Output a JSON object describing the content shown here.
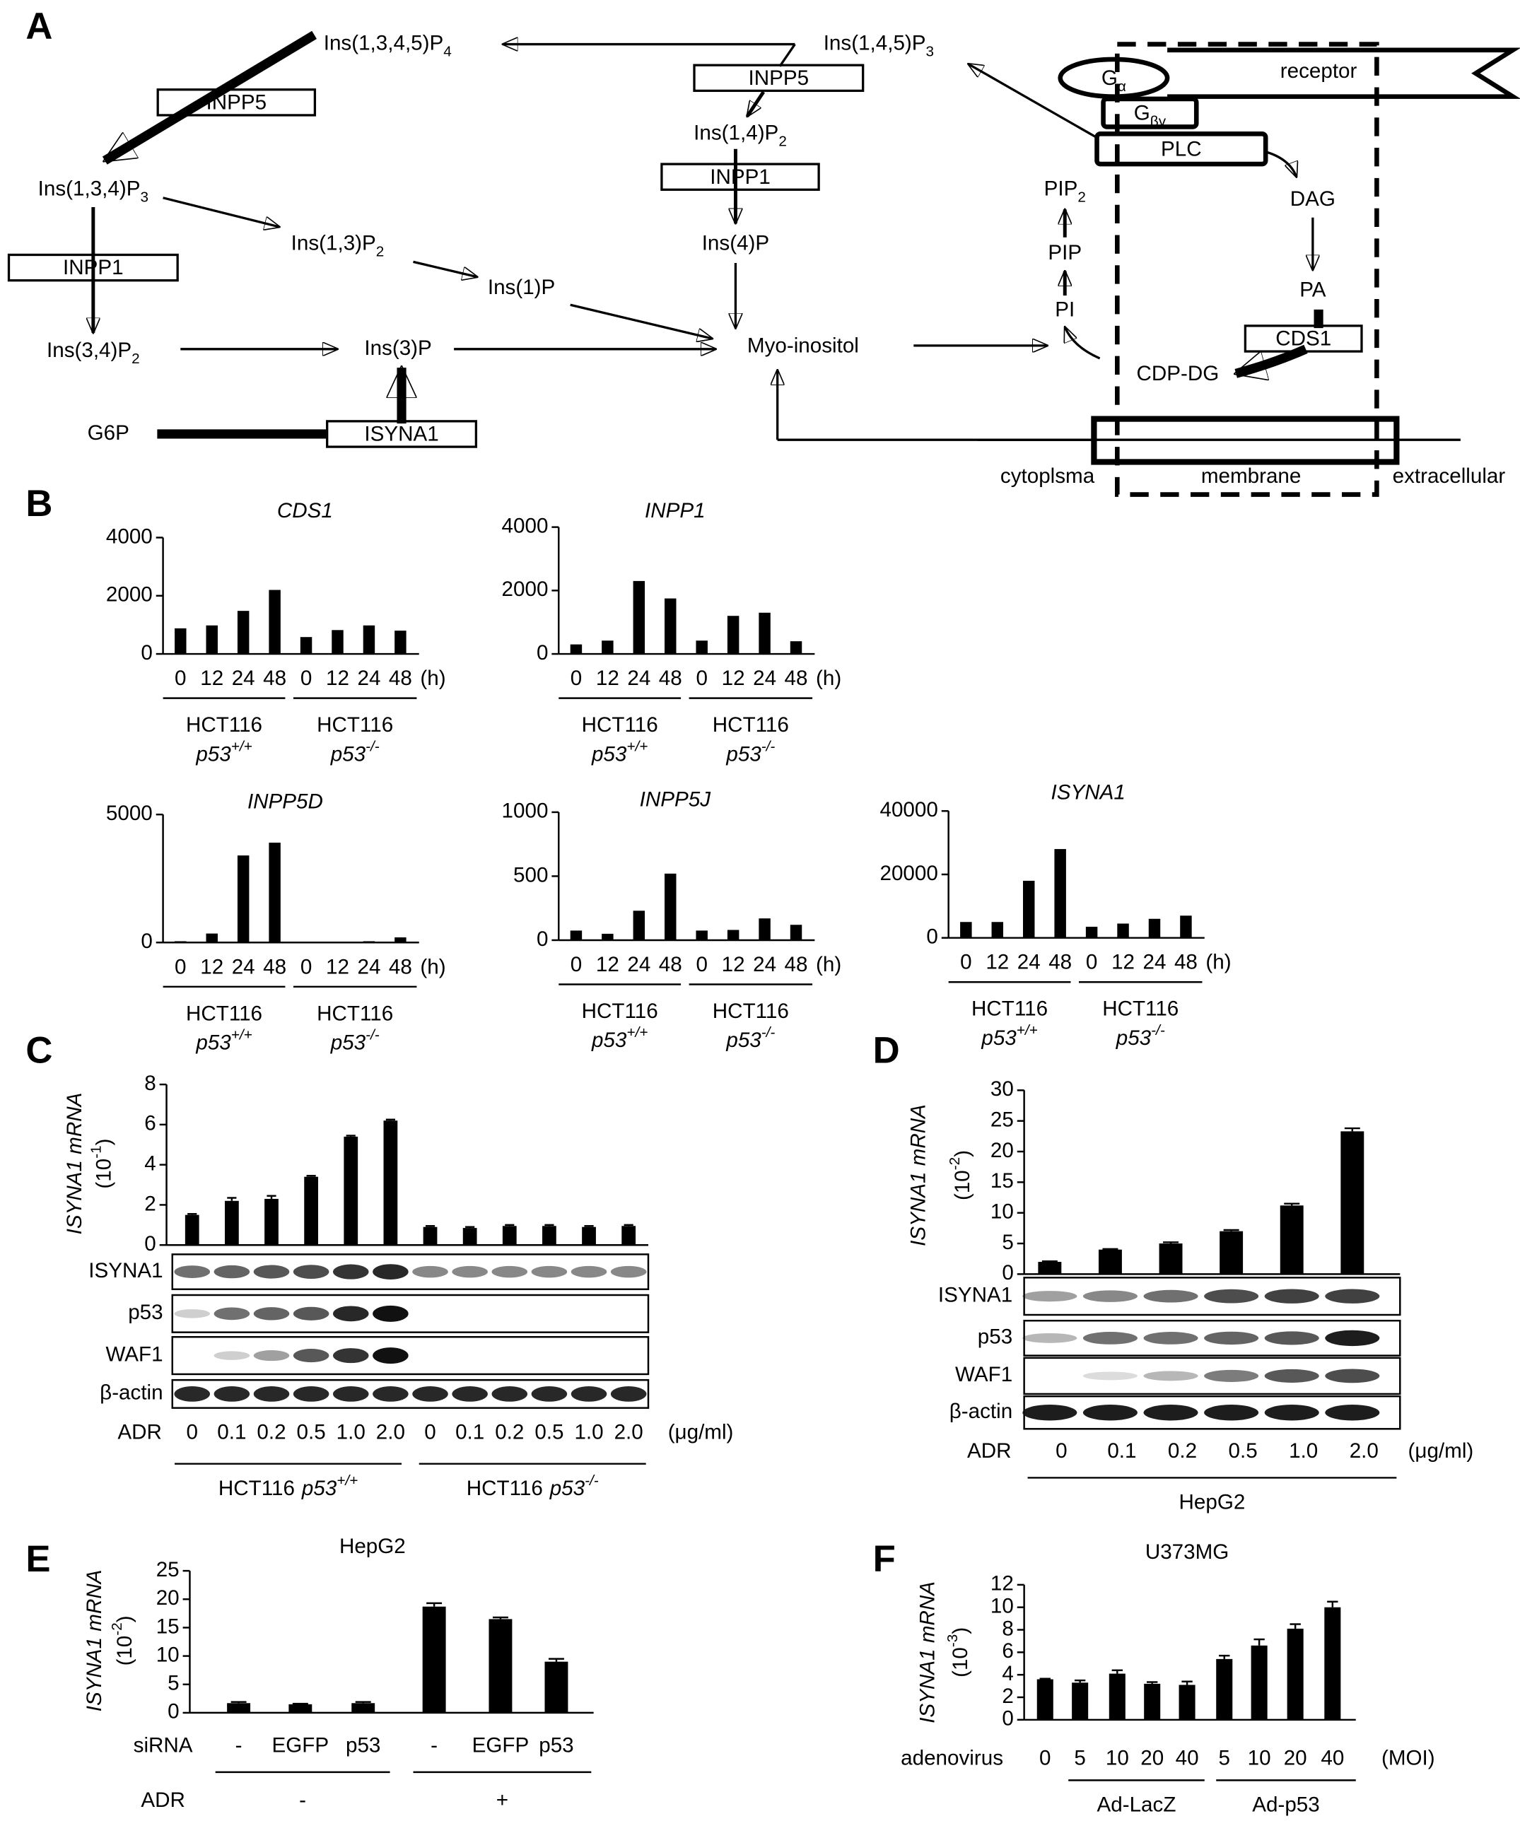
{
  "panel_labels": [
    "A",
    "B",
    "C",
    "D",
    "E",
    "F"
  ],
  "diagram": {
    "nodes": [
      {
        "text": "Ins(1,3,4,5)P",
        "sub": "4"
      },
      {
        "text": "Ins(1,3,4)P",
        "sub": "3"
      },
      {
        "text": "Ins(3,4)P",
        "sub": "2"
      },
      {
        "text": "Ins(1,3)P",
        "sub": "2"
      },
      {
        "text": "Ins(1)P"
      },
      {
        "text": "Ins(3)P"
      },
      {
        "text": "G6P"
      },
      {
        "text": "Ins(1,4)P",
        "sub": "2"
      },
      {
        "text": "Ins(4)P"
      },
      {
        "text": "Myo-inositol"
      },
      {
        "text": "Ins(1,4,5)P",
        "sub": "3"
      },
      {
        "text": "PIP",
        "sub": "2"
      },
      {
        "text": "PIP"
      },
      {
        "text": "PI"
      },
      {
        "text": "DAG"
      },
      {
        "text": "PA"
      },
      {
        "text": "CDP-DG"
      },
      {
        "text": "receptor"
      },
      {
        "text": "cytoplsma"
      },
      {
        "text": "membrane"
      },
      {
        "text": "extracellular"
      }
    ],
    "enzymes": [
      {
        "text": "INPP5"
      },
      {
        "text": "INPP1"
      },
      {
        "text": "ISYNA1"
      },
      {
        "text": "INPP5"
      },
      {
        "text": "INPP1"
      },
      {
        "text": "CDS1"
      },
      {
        "text": "G",
        "sub": "α"
      },
      {
        "text": "G",
        "sub": "βγ"
      },
      {
        "text": "PLC"
      }
    ]
  },
  "chart_data": [
    {
      "type": "bar",
      "title": "CDS1",
      "categories": [
        "0",
        "12",
        "24",
        "48",
        "0",
        "12",
        "24",
        "48"
      ],
      "values": [
        880,
        980,
        1480,
        2200,
        580,
        820,
        980,
        800
      ],
      "color": "#000000",
      "ylim": [
        0,
        4000
      ],
      "yticks": [
        0,
        2000,
        4000
      ],
      "x_unit": "(h)",
      "groups": [
        {
          "text": "HCT116",
          "gene": "p53",
          "sup": "+/+"
        },
        {
          "text": "HCT116",
          "gene": "p53",
          "sup": "-/-"
        }
      ]
    },
    {
      "type": "bar",
      "title": "INPP1",
      "categories": [
        "0",
        "12",
        "24",
        "48",
        "0",
        "12",
        "24",
        "48"
      ],
      "values": [
        300,
        420,
        2300,
        1750,
        420,
        1200,
        1300,
        400
      ],
      "color": "#000000",
      "ylim": [
        0,
        4000
      ],
      "yticks": [
        0,
        2000,
        4000
      ],
      "x_unit": "(h)",
      "groups": [
        {
          "text": "HCT116",
          "gene": "p53",
          "sup": "+/+"
        },
        {
          "text": "HCT116",
          "gene": "p53",
          "sup": "-/-"
        }
      ]
    },
    {
      "type": "bar",
      "title": "INPP5D",
      "categories": [
        "0",
        "12",
        "24",
        "48",
        "0",
        "12",
        "24",
        "48"
      ],
      "values": [
        50,
        350,
        3400,
        3900,
        0,
        0,
        50,
        200
      ],
      "color": "#000000",
      "ylim": [
        0,
        5000
      ],
      "yticks": [
        0,
        5000
      ],
      "x_unit": "(h)",
      "groups": [
        {
          "text": "HCT116",
          "gene": "p53",
          "sup": "+/+"
        },
        {
          "text": "HCT116",
          "gene": "p53",
          "sup": "-/-"
        }
      ]
    },
    {
      "type": "bar",
      "title": "INPP5J",
      "categories": [
        "0",
        "12",
        "24",
        "48",
        "0",
        "12",
        "24",
        "48"
      ],
      "values": [
        75,
        50,
        230,
        520,
        75,
        80,
        170,
        120
      ],
      "color": "#000000",
      "ylim": [
        0,
        1000
      ],
      "yticks": [
        0,
        500,
        1000
      ],
      "x_unit": "(h)",
      "groups": [
        {
          "text": "HCT116",
          "gene": "p53",
          "sup": "+/+"
        },
        {
          "text": "HCT116",
          "gene": "p53",
          "sup": "-/-"
        }
      ]
    },
    {
      "type": "bar",
      "title": "ISYNA1",
      "categories": [
        "0",
        "12",
        "24",
        "48",
        "0",
        "12",
        "24",
        "48"
      ],
      "values": [
        5000,
        5000,
        18000,
        28000,
        3500,
        4500,
        6000,
        7000
      ],
      "color": "#000000",
      "ylim": [
        0,
        40000
      ],
      "yticks": [
        0,
        20000,
        40000
      ],
      "x_unit": "(h)",
      "groups": [
        {
          "text": "HCT116",
          "gene": "p53",
          "sup": "+/+"
        },
        {
          "text": "HCT116",
          "gene": "p53",
          "sup": "-/-"
        }
      ]
    },
    {
      "type": "bar",
      "y_label": "ISYNA1  mRNA",
      "y_unit": {
        "text": "(10",
        "sup": "-1",
        "close": ")"
      },
      "categories": [
        "0",
        "0.1",
        "0.2",
        "0.5",
        "1.0",
        "2.0",
        "0",
        "0.1",
        "0.2",
        "0.5",
        "1.0",
        "2.0"
      ],
      "values": [
        1.5,
        2.2,
        2.3,
        3.4,
        5.4,
        6.2,
        0.9,
        0.85,
        0.95,
        0.95,
        0.9,
        0.95
      ],
      "errors": [
        0.05,
        0.15,
        0.15,
        0.05,
        0.05,
        0.05,
        0.05,
        0.05,
        0.05,
        0.05,
        0.05,
        0.05
      ],
      "color": "#000000",
      "ylim": [
        0,
        8
      ],
      "yticks": [
        0,
        2,
        4,
        6,
        8
      ],
      "blots": [
        "ISYNA1",
        "p53",
        "WAF1",
        "β-actin"
      ],
      "x_label": "ADR",
      "x_unit": "(μg/ml)",
      "groups": [
        {
          "text": "HCT116",
          "gene": "p53",
          "sup": "+/+"
        },
        {
          "text": "HCT116",
          "gene": "p53",
          "sup": "-/-"
        }
      ]
    },
    {
      "type": "bar",
      "y_label": "ISYNA1  mRNA",
      "y_unit": {
        "text": "(10",
        "sup": "-2",
        "close": ")"
      },
      "categories": [
        "0",
        "0.1",
        "0.2",
        "0.5",
        "1.0",
        "2.0"
      ],
      "values": [
        2,
        4,
        5,
        7,
        11.2,
        23.3
      ],
      "errors": [
        0.1,
        0.1,
        0.2,
        0.2,
        0.3,
        0.5
      ],
      "color": "#000000",
      "ylim": [
        0,
        30
      ],
      "yticks": [
        0,
        5,
        10,
        15,
        20,
        25,
        30
      ],
      "blots": [
        "ISYNA1",
        "p53",
        "WAF1",
        "β-actin"
      ],
      "x_label": "ADR",
      "x_unit": "(μg/ml)",
      "groups": [
        {
          "text": "HepG2"
        }
      ]
    },
    {
      "type": "bar",
      "subtitle": "HepG2",
      "y_label": "ISYNA1  mRNA",
      "y_unit": {
        "text": "(10",
        "sup": "-2",
        "close": ")"
      },
      "categories": [
        "-",
        "EGFP",
        "p53",
        "-",
        "EGFP",
        "p53"
      ],
      "values": [
        1.7,
        1.5,
        1.7,
        18.7,
        16.5,
        9
      ],
      "errors": [
        0.2,
        0.1,
        0.2,
        0.6,
        0.3,
        0.5
      ],
      "color": "#000000",
      "ylim": [
        0,
        25
      ],
      "yticks": [
        0,
        5,
        10,
        15,
        20,
        25
      ],
      "x_label": "siRNA",
      "group_label": "ADR",
      "groups": [
        {
          "text": "-"
        },
        {
          "text": "+"
        }
      ]
    },
    {
      "type": "bar",
      "subtitle": "U373MG",
      "y_label": "ISYNA1  mRNA",
      "y_unit": {
        "text": "(10",
        "sup": "-3",
        "close": ")"
      },
      "categories": [
        "0",
        "5",
        "10",
        "20",
        "40",
        "5",
        "10",
        "20",
        "40"
      ],
      "values": [
        3.6,
        3.3,
        4.1,
        3.2,
        3.1,
        5.4,
        6.6,
        8.1,
        10
      ],
      "errors": [
        0.05,
        0.2,
        0.3,
        0.15,
        0.3,
        0.3,
        0.55,
        0.4,
        0.5
      ],
      "color": "#000000",
      "ylim": [
        0,
        12
      ],
      "yticks": [
        0,
        2,
        4,
        6,
        8,
        10,
        12
      ],
      "x_label": "adenovirus",
      "x_unit": "(MOI)",
      "groups": [
        {
          "text": "Ad-LacZ"
        },
        {
          "text": "Ad-p53"
        }
      ]
    }
  ]
}
